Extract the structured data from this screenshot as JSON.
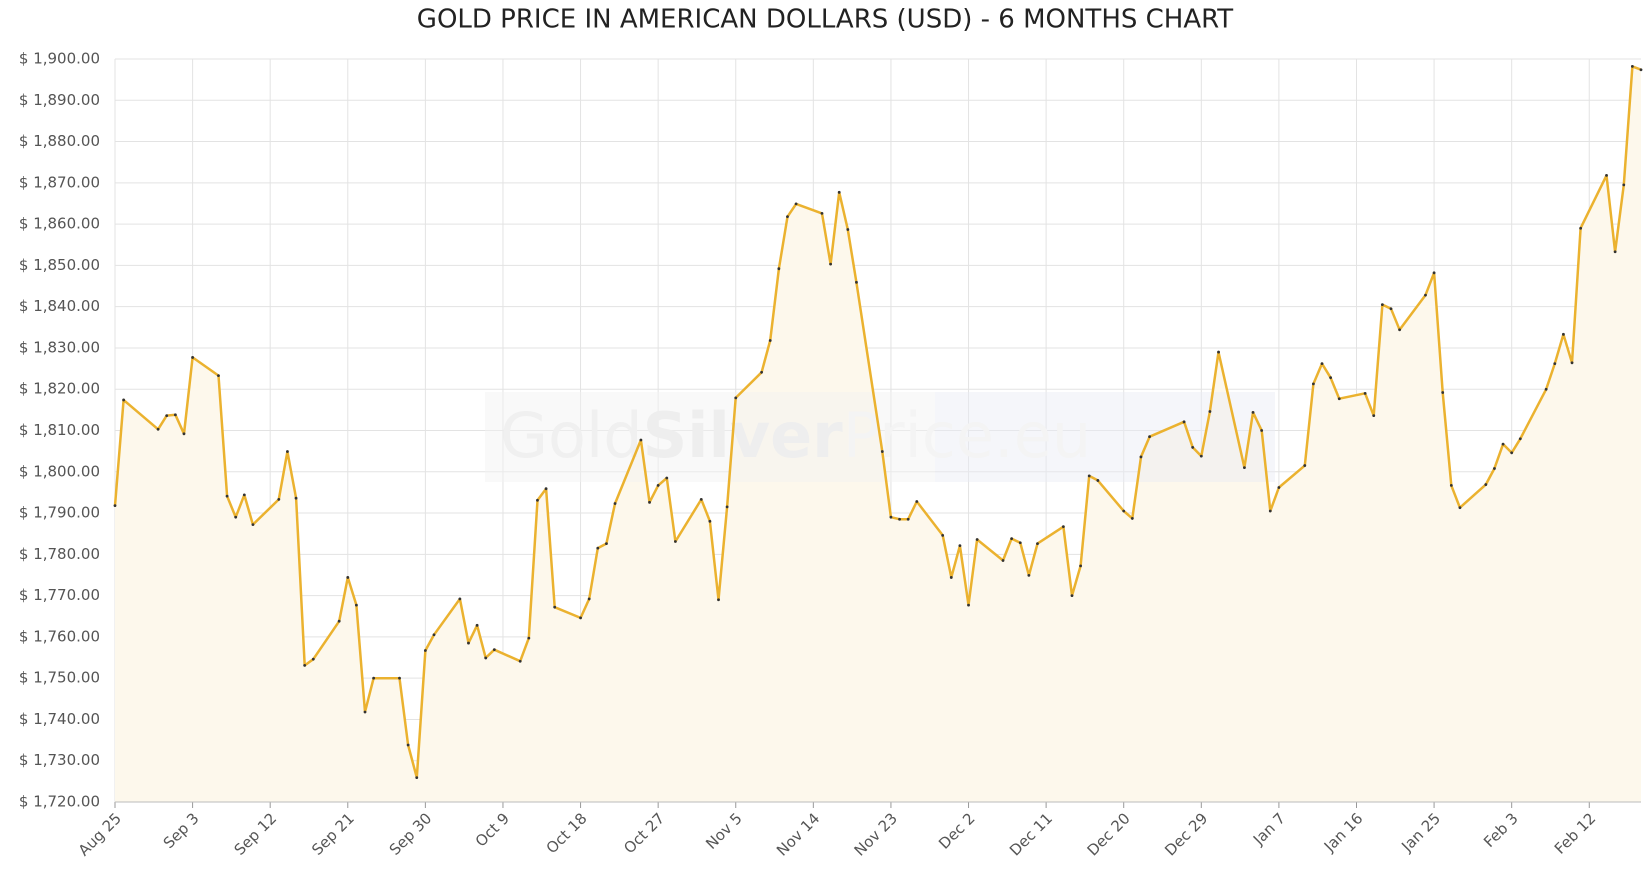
{
  "chart_data": {
    "type": "line",
    "title": "GOLD PRICE IN AMERICAN DOLLARS (USD) - 6 MONTHS CHART",
    "watermark": [
      "Gold",
      "Silver",
      "Price.eu"
    ],
    "x": [
      "Aug 25",
      "Aug 26",
      "Aug 30",
      "Aug 31",
      "Sep 1",
      "Sep 2",
      "Sep 3",
      "Sep 6",
      "Sep 7",
      "Sep 8",
      "Sep 9",
      "Sep 10",
      "Sep 13",
      "Sep 14",
      "Sep 15",
      "Sep 16",
      "Sep 17",
      "Sep 20",
      "Sep 21",
      "Sep 22",
      "Sep 23",
      "Sep 24",
      "Sep 27",
      "Sep 28",
      "Sep 29",
      "Sep 30",
      "Oct 1",
      "Oct 4",
      "Oct 5",
      "Oct 6",
      "Oct 7",
      "Oct 8",
      "Oct 11",
      "Oct 12",
      "Oct 13",
      "Oct 14",
      "Oct 15",
      "Oct 18",
      "Oct 19",
      "Oct 20",
      "Oct 21",
      "Oct 22",
      "Oct 25",
      "Oct 26",
      "Oct 27",
      "Oct 28",
      "Oct 29",
      "Nov 1",
      "Nov 2",
      "Nov 3",
      "Nov 4",
      "Nov 5",
      "Nov 8",
      "Nov 9",
      "Nov 10",
      "Nov 11",
      "Nov 12",
      "Nov 15",
      "Nov 16",
      "Nov 17",
      "Nov 18",
      "Nov 19",
      "Nov 22",
      "Nov 23",
      "Nov 24",
      "Nov 25",
      "Nov 26",
      "Nov 29",
      "Nov 30",
      "Dec 1",
      "Dec 2",
      "Dec 3",
      "Dec 6",
      "Dec 7",
      "Dec 8",
      "Dec 9",
      "Dec 10",
      "Dec 13",
      "Dec 14",
      "Dec 15",
      "Dec 16",
      "Dec 17",
      "Dec 20",
      "Dec 21",
      "Dec 22",
      "Dec 23",
      "Dec 27",
      "Dec 28",
      "Dec 29",
      "Dec 30",
      "Dec 31",
      "Jan 3",
      "Jan 4",
      "Jan 5",
      "Jan 6",
      "Jan 7",
      "Jan 10",
      "Jan 11",
      "Jan 12",
      "Jan 13",
      "Jan 14",
      "Jan 17",
      "Jan 18",
      "Jan 19",
      "Jan 20",
      "Jan 21",
      "Jan 24",
      "Jan 25",
      "Jan 26",
      "Jan 27",
      "Jan 28",
      "Jan 31",
      "Feb 1",
      "Feb 2",
      "Feb 3",
      "Feb 4",
      "Feb 7",
      "Feb 8",
      "Feb 9",
      "Feb 10",
      "Feb 11",
      "Feb 14",
      "Feb 15",
      "Feb 16",
      "Feb 17",
      "Feb 18"
    ],
    "series": [
      {
        "name": "Gold",
        "color": "#ebb22f",
        "fill": "#fdf8ec",
        "values": [
          1791.8,
          1817.4,
          1810.3,
          1813.6,
          1813.8,
          1809.2,
          1827.7,
          1823.3,
          1794.1,
          1789.0,
          1794.4,
          1787.2,
          1793.3,
          1804.9,
          1793.6,
          1753.1,
          1754.6,
          1763.8,
          1774.4,
          1767.7,
          1741.8,
          1750.0,
          1750.0,
          1733.8,
          1725.9,
          1756.7,
          1760.5,
          1769.2,
          1758.5,
          1762.8,
          1754.9,
          1756.9,
          1754.1,
          1759.7,
          1793.1,
          1795.9,
          1767.2,
          1764.6,
          1769.2,
          1781.5,
          1782.6,
          1792.3,
          1807.7,
          1792.6,
          1796.7,
          1798.5,
          1783.1,
          1793.3,
          1788.0,
          1769.0,
          1791.5,
          1817.9,
          1824.1,
          1831.8,
          1849.2,
          1861.8,
          1864.9,
          1862.6,
          1850.3,
          1867.7,
          1858.7,
          1845.9,
          1804.9,
          1789.0,
          1788.5,
          1788.5,
          1792.8,
          1784.6,
          1774.4,
          1782.1,
          1767.7,
          1783.6,
          1778.5,
          1783.8,
          1782.8,
          1774.9,
          1782.6,
          1786.7,
          1770.0,
          1777.2,
          1799.0,
          1797.9,
          1790.5,
          1788.7,
          1803.6,
          1808.5,
          1812.1,
          1805.9,
          1803.8,
          1814.6,
          1829.0,
          1801.0,
          1814.4,
          1810.0,
          1790.5,
          1796.2,
          1801.5,
          1821.3,
          1826.2,
          1822.8,
          1817.7,
          1819.0,
          1813.6,
          1840.5,
          1839.5,
          1834.4,
          1842.8,
          1848.2,
          1819.2,
          1796.7,
          1791.3,
          1796.9,
          1800.8,
          1806.7,
          1804.6,
          1808.0,
          1820.0,
          1826.2,
          1833.3,
          1826.4,
          1859.0,
          1871.8,
          1853.3,
          1869.5,
          1898.2,
          1897.4
        ]
      }
    ],
    "xlim": [
      "Aug 25",
      "Feb 18"
    ],
    "xticks": [
      "Aug 25",
      "Sep 3",
      "Sep 12",
      "Sep 21",
      "Sep 30",
      "Oct 9",
      "Oct 18",
      "Oct 27",
      "Nov 5",
      "Nov 14",
      "Nov 23",
      "Dec 2",
      "Dec 11",
      "Dec 20",
      "Dec 29",
      "Jan 7",
      "Jan 16",
      "Jan 25",
      "Feb 3",
      "Feb 12"
    ],
    "ylim": [
      1720,
      1900
    ],
    "yticks": [
      {
        "value": 1720,
        "label": "$ 1,720.00"
      },
      {
        "value": 1730,
        "label": "$ 1,730.00"
      },
      {
        "value": 1740,
        "label": "$ 1,740.00"
      },
      {
        "value": 1750,
        "label": "$ 1,750.00"
      },
      {
        "value": 1760,
        "label": "$ 1,760.00"
      },
      {
        "value": 1770,
        "label": "$ 1,770.00"
      },
      {
        "value": 1780,
        "label": "$ 1,780.00"
      },
      {
        "value": 1790,
        "label": "$ 1,790.00"
      },
      {
        "value": 1800,
        "label": "$ 1,800.00"
      },
      {
        "value": 1810,
        "label": "$ 1,810.00"
      },
      {
        "value": 1820,
        "label": "$ 1,820.00"
      },
      {
        "value": 1830,
        "label": "$ 1,830.00"
      },
      {
        "value": 1840,
        "label": "$ 1,840.00"
      },
      {
        "value": 1850,
        "label": "$ 1,850.00"
      },
      {
        "value": 1860,
        "label": "$ 1,860.00"
      },
      {
        "value": 1870,
        "label": "$ 1,870.00"
      },
      {
        "value": 1880,
        "label": "$ 1,880.00"
      },
      {
        "value": 1890,
        "label": "$ 1,890.00"
      },
      {
        "value": 1900,
        "label": "$ 1,900.00"
      }
    ],
    "grid": true
  }
}
